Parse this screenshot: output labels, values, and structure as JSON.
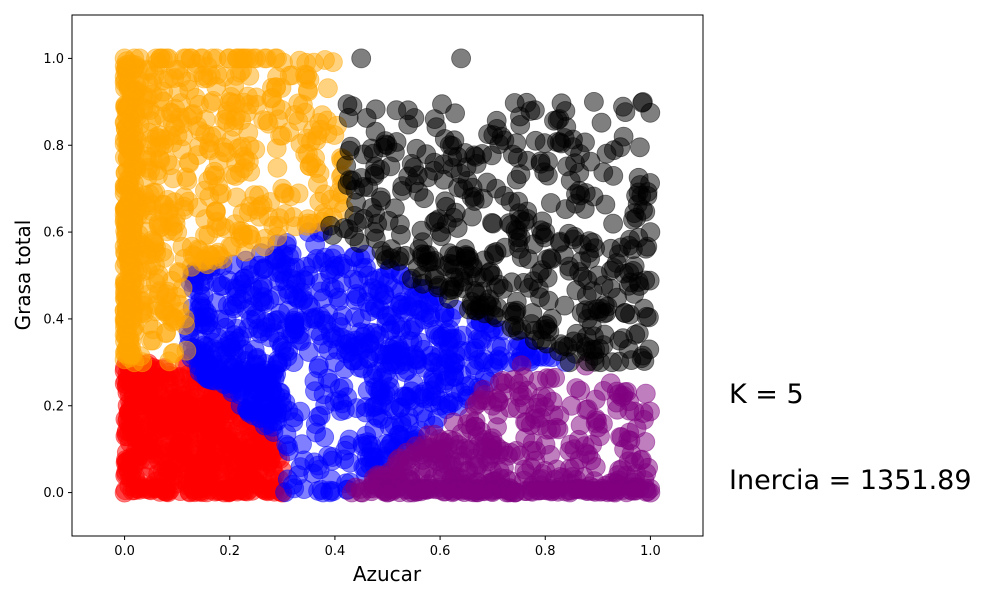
{
  "chart_data": {
    "type": "scatter",
    "title": "",
    "xlabel": "Azucar",
    "ylabel": "Grasa total",
    "xlim": [
      -0.1,
      1.1
    ],
    "ylim": [
      -0.1,
      1.1
    ],
    "x_ticks": [
      "0.0",
      "0.2",
      "0.4",
      "0.6",
      "0.8",
      "1.0"
    ],
    "y_ticks": [
      "0.0",
      "0.2",
      "0.4",
      "0.6",
      "0.8",
      "1.0"
    ],
    "grid": false,
    "legend": "none",
    "marker_alpha": 0.5,
    "clusters": [
      {
        "color": "#ff0000",
        "region": "low sugar (0–0.3), low fat (0–0.3)",
        "approx_points": [
          [
            0.0,
            0.0
          ],
          [
            0.05,
            0.1
          ],
          [
            0.1,
            0.2
          ],
          [
            0.15,
            0.05
          ],
          [
            0.2,
            0.1
          ],
          [
            0.25,
            0.02
          ],
          [
            0.0,
            0.28
          ],
          [
            0.05,
            0.25
          ],
          [
            0.1,
            0.1
          ],
          [
            0.3,
            0.0
          ]
        ]
      },
      {
        "color": "#ffa500",
        "region": "low sugar (0–0.4), high fat (0.3–1.0)",
        "approx_points": [
          [
            0.0,
            1.0
          ],
          [
            0.05,
            0.8
          ],
          [
            0.1,
            0.6
          ],
          [
            0.0,
            0.4
          ],
          [
            0.2,
            0.9
          ],
          [
            0.3,
            0.7
          ],
          [
            0.25,
            1.0
          ],
          [
            0.15,
            0.5
          ],
          [
            0.35,
            0.6
          ],
          [
            0.05,
            0.35
          ]
        ]
      },
      {
        "color": "#0000ff",
        "region": "mid sugar (0.1–0.7), low-mid fat (0–0.55)",
        "approx_points": [
          [
            0.2,
            0.35
          ],
          [
            0.3,
            0.2
          ],
          [
            0.4,
            0.3
          ],
          [
            0.5,
            0.1
          ],
          [
            0.35,
            0.5
          ],
          [
            0.45,
            0.4
          ],
          [
            0.55,
            0.25
          ],
          [
            0.3,
            0.05
          ],
          [
            0.6,
            0.2
          ],
          [
            0.25,
            0.4
          ]
        ]
      },
      {
        "color": "#000000",
        "region": "high sugar (0.4–1.0), mid-high fat (0.3–1.0)",
        "approx_points": [
          [
            0.45,
            1.0
          ],
          [
            0.64,
            1.0
          ],
          [
            0.5,
            0.8
          ],
          [
            0.6,
            0.6
          ],
          [
            0.7,
            0.5
          ],
          [
            0.8,
            0.6
          ],
          [
            0.9,
            0.5
          ],
          [
            1.0,
            0.6
          ],
          [
            0.75,
            0.35
          ],
          [
            0.55,
            0.45
          ]
        ]
      },
      {
        "color": "#800080",
        "region": "high sugar (0.45–1.0), low fat (0–0.3)",
        "approx_points": [
          [
            0.5,
            0.0
          ],
          [
            0.6,
            0.1
          ],
          [
            0.7,
            0.2
          ],
          [
            0.8,
            0.05
          ],
          [
            0.9,
            0.15
          ],
          [
            1.0,
            0.0
          ],
          [
            0.75,
            0.25
          ],
          [
            0.85,
            0.2
          ],
          [
            0.95,
            0.1
          ],
          [
            0.65,
            0.05
          ]
        ]
      }
    ]
  },
  "annotations": {
    "k_label": "K = 5",
    "inertia_label": "Inercia = 1351.89"
  }
}
